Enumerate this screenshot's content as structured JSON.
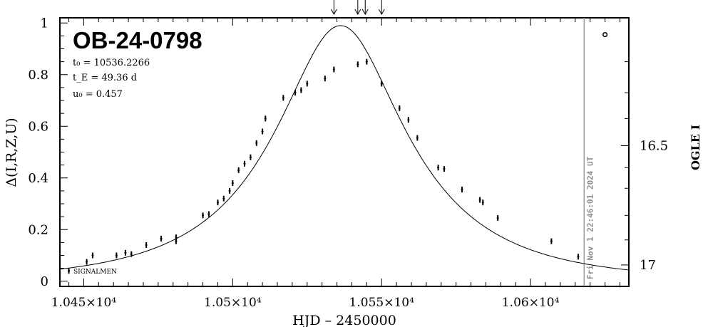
{
  "chart_data": {
    "type": "scatter",
    "event_name": "OB-24-0798",
    "params": {
      "t0": "t₀ = 10536.2266",
      "tE": "t_E = 49.36 d",
      "u0": "u₀ = 0.457"
    },
    "xlabel": "HJD – 2450000",
    "ylabel_left": "Δ(I,R,Z,U)",
    "ylabel_right": "OGLE I",
    "xlim": [
      10442,
      10633
    ],
    "ylim": [
      -0.02,
      1.02
    ],
    "x_ticks": [
      10450,
      10500,
      10550,
      10600
    ],
    "x_tick_labels": [
      "1.045×10⁴",
      "1.05×10⁴",
      "1.055×10⁴",
      "1.06×10⁴"
    ],
    "y_ticks": [
      0,
      0.2,
      0.4,
      0.6,
      0.8,
      1
    ],
    "y_tick_labels": [
      "0",
      "0.2",
      "0.4",
      "0.6",
      "0.8",
      "1"
    ],
    "right_ticks_delta": [
      0.525,
      0.063
    ],
    "right_tick_labels": [
      "16.5",
      "17"
    ],
    "model": {
      "t0": 10536.2266,
      "tE": 49.36,
      "u0": 0.457,
      "baseline": 0.0,
      "scale": 0.73
    },
    "observation_time": 10618,
    "observation_label": "Fri Nov  1 22:46:01 2024 UT",
    "signalmen_label": "SIGNALMEN",
    "open_marker": {
      "x": 10625,
      "y": 0.955
    },
    "top_arrows_x": [
      10534,
      10542,
      10544.5,
      10550
    ],
    "points": [
      {
        "x": 10445,
        "y": 0.04
      },
      {
        "x": 10451,
        "y": 0.075
      },
      {
        "x": 10453,
        "y": 0.1
      },
      {
        "x": 10461,
        "y": 0.1
      },
      {
        "x": 10464,
        "y": 0.11
      },
      {
        "x": 10466,
        "y": 0.105
      },
      {
        "x": 10471,
        "y": 0.14
      },
      {
        "x": 10476,
        "y": 0.165
      },
      {
        "x": 10481,
        "y": 0.155
      },
      {
        "x": 10481,
        "y": 0.17
      },
      {
        "x": 10490,
        "y": 0.255
      },
      {
        "x": 10492,
        "y": 0.26
      },
      {
        "x": 10495,
        "y": 0.305
      },
      {
        "x": 10497,
        "y": 0.32
      },
      {
        "x": 10499,
        "y": 0.35
      },
      {
        "x": 10500,
        "y": 0.38
      },
      {
        "x": 10502,
        "y": 0.43
      },
      {
        "x": 10504,
        "y": 0.455
      },
      {
        "x": 10506,
        "y": 0.48
      },
      {
        "x": 10508,
        "y": 0.535
      },
      {
        "x": 10510,
        "y": 0.58
      },
      {
        "x": 10511,
        "y": 0.63
      },
      {
        "x": 10517,
        "y": 0.71
      },
      {
        "x": 10521,
        "y": 0.73
      },
      {
        "x": 10523,
        "y": 0.74
      },
      {
        "x": 10525,
        "y": 0.765
      },
      {
        "x": 10531,
        "y": 0.785
      },
      {
        "x": 10534,
        "y": 0.82
      },
      {
        "x": 10542,
        "y": 0.84
      },
      {
        "x": 10545,
        "y": 0.85
      },
      {
        "x": 10550,
        "y": 0.765
      },
      {
        "x": 10556,
        "y": 0.67
      },
      {
        "x": 10559,
        "y": 0.625
      },
      {
        "x": 10562,
        "y": 0.555
      },
      {
        "x": 10569,
        "y": 0.44
      },
      {
        "x": 10571,
        "y": 0.435
      },
      {
        "x": 10577,
        "y": 0.355
      },
      {
        "x": 10583,
        "y": 0.315
      },
      {
        "x": 10584,
        "y": 0.305
      },
      {
        "x": 10589,
        "y": 0.245
      },
      {
        "x": 10607,
        "y": 0.155
      },
      {
        "x": 10616,
        "y": 0.095
      }
    ]
  }
}
